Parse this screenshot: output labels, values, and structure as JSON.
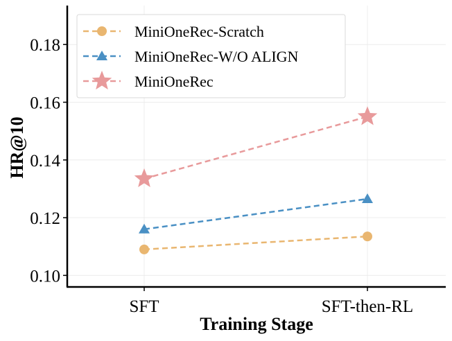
{
  "chart_data": {
    "type": "line",
    "categories": [
      "SFT",
      "SFT-then-RL"
    ],
    "series": [
      {
        "name": "MiniOneRec-Scratch",
        "values": [
          0.109,
          0.1135
        ],
        "color": "#E9B670",
        "marker": "circle"
      },
      {
        "name": "MiniOneRec-W/O ALIGN",
        "values": [
          0.116,
          0.1265
        ],
        "color": "#4A90C4",
        "marker": "triangle"
      },
      {
        "name": "MiniOneRec",
        "values": [
          0.1335,
          0.155
        ],
        "color": "#E89A9B",
        "marker": "star"
      }
    ],
    "xlabel": "Training Stage",
    "ylabel": "HR@10",
    "ylim": [
      0.096,
      0.1935
    ],
    "yticks": [
      0.1,
      0.12,
      0.14,
      0.16,
      0.18
    ],
    "ytick_labels": [
      "0.10",
      "0.12",
      "0.14",
      "0.16",
      "0.18"
    ],
    "grid": true,
    "legend_position": "top-left"
  }
}
